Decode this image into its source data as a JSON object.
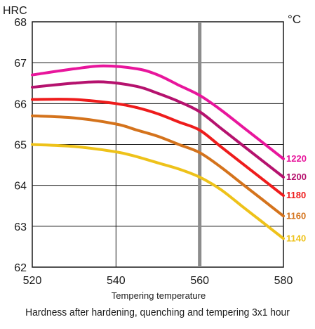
{
  "chart_data": {
    "type": "line",
    "ylabel": "HRC",
    "unit_label": "°C",
    "xlabel": "Tempering temperature",
    "caption": "Hardness after hardening, quenching and tempering  3x1 hour",
    "xlim": [
      520,
      580
    ],
    "ylim": [
      62,
      68
    ],
    "x_ticks": [
      520,
      540,
      560,
      580
    ],
    "y_ticks": [
      62,
      63,
      64,
      65,
      66,
      67,
      68
    ],
    "grid": true,
    "reference_line_x": 560,
    "reference_line_color": "#8c8c8c",
    "series": [
      {
        "name": "1220",
        "color": "#e8169c",
        "x": [
          520,
          530,
          537,
          545,
          550,
          555,
          560,
          565,
          570,
          575,
          580
        ],
        "y": [
          66.7,
          66.85,
          66.92,
          66.85,
          66.7,
          66.45,
          66.2,
          65.85,
          65.45,
          65.05,
          64.65
        ]
      },
      {
        "name": "1200",
        "color": "#b5126e",
        "x": [
          520,
          530,
          537,
          545,
          550,
          555,
          560,
          565,
          570,
          575,
          580
        ],
        "y": [
          66.4,
          66.5,
          66.53,
          66.42,
          66.25,
          66.05,
          65.8,
          65.4,
          65.0,
          64.6,
          64.2
        ]
      },
      {
        "name": "1180",
        "color": "#ee1c1c",
        "x": [
          520,
          530,
          540,
          545,
          550,
          555,
          560,
          565,
          570,
          575,
          580
        ],
        "y": [
          66.1,
          66.1,
          66.0,
          65.9,
          65.75,
          65.55,
          65.35,
          64.95,
          64.55,
          64.15,
          63.75
        ]
      },
      {
        "name": "1160",
        "color": "#d4731c",
        "x": [
          520,
          530,
          540,
          545,
          550,
          555,
          560,
          565,
          570,
          575,
          580
        ],
        "y": [
          65.7,
          65.65,
          65.5,
          65.35,
          65.2,
          65.0,
          64.8,
          64.45,
          64.05,
          63.65,
          63.25
        ]
      },
      {
        "name": "1140",
        "color": "#eec21a",
        "x": [
          520,
          530,
          540,
          545,
          550,
          555,
          560,
          565,
          570,
          575,
          580
        ],
        "y": [
          65.0,
          64.95,
          64.82,
          64.7,
          64.55,
          64.4,
          64.2,
          63.9,
          63.5,
          63.1,
          62.7
        ]
      }
    ]
  }
}
